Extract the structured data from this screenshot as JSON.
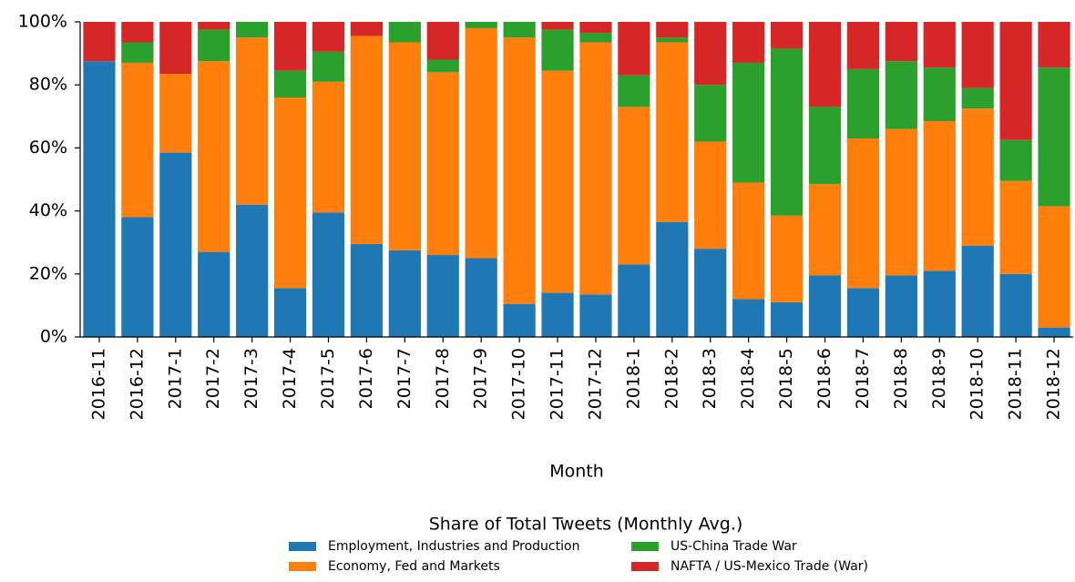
{
  "chart_data": {
    "type": "stacked_bar",
    "x_label": "Month",
    "legend_title": "Share of Total Tweets (Monthly Avg.)",
    "categories": [
      "2016-11",
      "2016-12",
      "2017-1",
      "2017-2",
      "2017-3",
      "2017-4",
      "2017-5",
      "2017-6",
      "2017-7",
      "2017-8",
      "2017-9",
      "2017-10",
      "2017-11",
      "2017-12",
      "2018-1",
      "2018-2",
      "2018-3",
      "2018-4",
      "2018-5",
      "2018-6",
      "2018-7",
      "2018-8",
      "2018-9",
      "2018-10",
      "2018-11",
      "2018-12"
    ],
    "series": [
      {
        "name": "Employment, Industries and Production",
        "color": "#1f77b4",
        "values": [
          87.5,
          38,
          58.5,
          27,
          42,
          15.5,
          39.5,
          29.5,
          27.5,
          26,
          25,
          10.5,
          14,
          13.5,
          23,
          36.5,
          28,
          12,
          11,
          19.5,
          15.5,
          19.5,
          21,
          29,
          20,
          3
        ]
      },
      {
        "name": "Economy, Fed and Markets",
        "color": "#ff7f0e",
        "values": [
          0,
          49,
          25,
          60.5,
          53,
          60.5,
          41.5,
          66,
          66,
          58,
          73,
          84.5,
          70.5,
          80,
          50,
          57,
          34,
          37,
          27.5,
          29,
          47.5,
          46.5,
          47.5,
          43.5,
          29.5,
          38.5
        ]
      },
      {
        "name": "US-China Trade War",
        "color": "#2ca02c",
        "values": [
          0,
          6.5,
          0,
          10,
          5,
          8.5,
          9.5,
          0,
          6.5,
          4,
          2,
          5,
          13,
          3,
          10,
          1.5,
          18,
          38,
          53,
          24.5,
          22,
          21.5,
          17,
          6.5,
          13,
          44
        ]
      },
      {
        "name": "NAFTA / US-Mexico Trade (War)",
        "color": "#d62728",
        "values": [
          12.5,
          6.5,
          16.5,
          2.5,
          0,
          15.5,
          9.5,
          4.5,
          0,
          12,
          0,
          0,
          2.5,
          3.5,
          17,
          5,
          20,
          13,
          8.5,
          27,
          15,
          12.5,
          14.5,
          21,
          37.5,
          14.5
        ]
      }
    ],
    "ylim": [
      0,
      100
    ],
    "yticks": [
      {
        "value": 0,
        "label": "0%"
      },
      {
        "value": 20,
        "label": "20%"
      },
      {
        "value": 40,
        "label": "40%"
      },
      {
        "value": 60,
        "label": "60%"
      },
      {
        "value": 80,
        "label": "80%"
      },
      {
        "value": 100,
        "label": "100%"
      }
    ],
    "grid": false
  }
}
